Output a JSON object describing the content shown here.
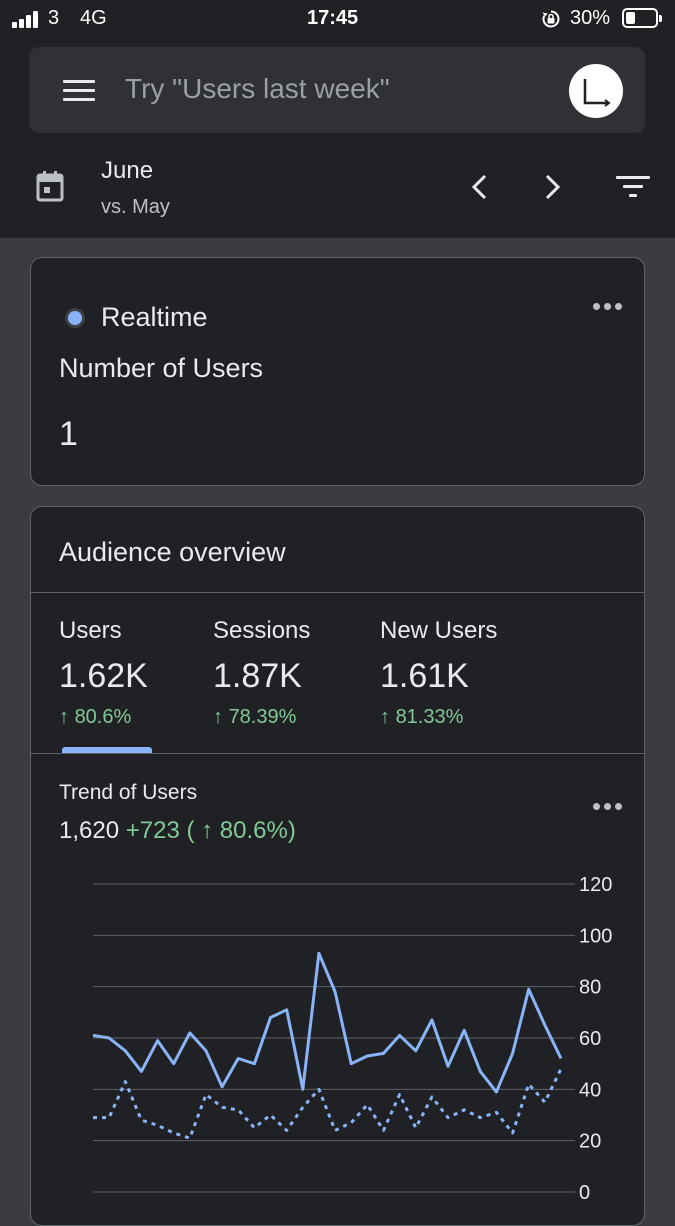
{
  "status_bar": {
    "carrier": "3",
    "network": "4G",
    "time": "17:45",
    "battery": "30%",
    "icons": [
      "signal-icon",
      "rotation-lock-icon",
      "battery-icon"
    ]
  },
  "search": {
    "placeholder": "Try \"Users last week\"",
    "icons": [
      "menu-icon",
      "analytics-logo-icon"
    ]
  },
  "date_range": {
    "primary": "June",
    "comparison": "vs. May",
    "icons": [
      "calendar-icon",
      "chevron-left-icon",
      "chevron-right-icon",
      "filter-icon"
    ]
  },
  "realtime_card": {
    "title": "Realtime",
    "metric_label": "Number of Users",
    "metric_value": "1"
  },
  "audience_card": {
    "title": "Audience overview",
    "metrics": [
      {
        "label": "Users",
        "value": "1.62K",
        "change": "80.6%"
      },
      {
        "label": "Sessions",
        "value": "1.87K",
        "change": "78.39%"
      },
      {
        "label": "New Users",
        "value": "1.61K",
        "change": "81.33%"
      }
    ],
    "selected_metric": "Users",
    "trend": {
      "title": "Trend of Users",
      "total": "1,620",
      "delta": "+723",
      "delta_pct": "( ↑ 80.6%)"
    }
  },
  "colors": {
    "background": "#202124",
    "accent_blue": "#8ab4f8",
    "positive_green": "#81c995"
  },
  "chart_data": {
    "type": "line",
    "title": "Trend of Users",
    "xlabel": "",
    "ylabel": "",
    "ylim": [
      0,
      120
    ],
    "yticks": [
      0,
      20,
      40,
      60,
      80,
      100,
      120
    ],
    "grid": true,
    "series": [
      {
        "style": "solid",
        "values": [
          61,
          60,
          55,
          47,
          59,
          50,
          62,
          55,
          41,
          52,
          50,
          68,
          71,
          40,
          93,
          78,
          50,
          53,
          54,
          61,
          55,
          67,
          49,
          63,
          47,
          39,
          54,
          79,
          65,
          52
        ]
      },
      {
        "style": "dotted",
        "values": [
          29,
          29,
          43,
          28,
          26,
          23,
          21,
          38,
          33,
          32,
          25,
          30,
          24,
          33,
          40,
          24,
          27,
          34,
          24,
          38,
          25,
          37,
          29,
          32,
          29,
          31,
          23,
          42,
          35,
          48
        ]
      }
    ]
  }
}
